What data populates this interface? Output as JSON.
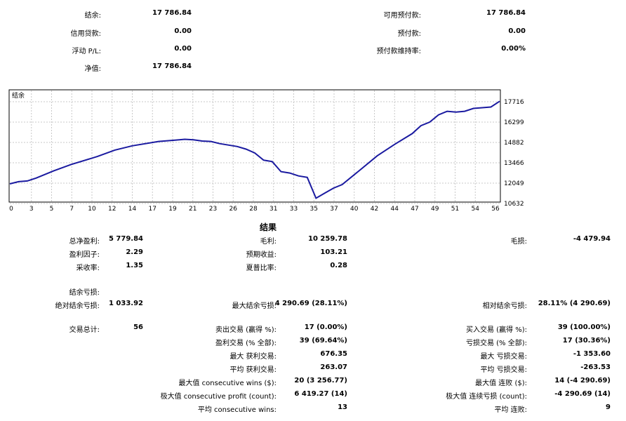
{
  "summary": {
    "balance_label": "结余:",
    "balance_value": "17 786.84",
    "credit_label": "信用贷款:",
    "credit_value": "0.00",
    "floating_label": "浮动 P/L:",
    "floating_value": "0.00",
    "equity_label": "净值:",
    "equity_value": "17 786.84",
    "free_margin_label": "可用预付款:",
    "free_margin_value": "17 786.84",
    "margin_label": "预付款:",
    "margin_value": "0.00",
    "margin_level_label": "预付款维持率:",
    "margin_level_value": "0.00%"
  },
  "chart_data": {
    "type": "line",
    "legend": "结余",
    "x_ticks": [
      "0",
      "3",
      "5",
      "7",
      "10",
      "12",
      "14",
      "17",
      "19",
      "21",
      "23",
      "26",
      "28",
      "31",
      "33",
      "35",
      "37",
      "40",
      "42",
      "44",
      "47",
      "49",
      "51",
      "54",
      "56"
    ],
    "y_ticks": [
      "17716",
      "16299",
      "14882",
      "13466",
      "12049",
      "10632"
    ],
    "ylim": [
      10632,
      17716
    ],
    "xlim": [
      0,
      56
    ],
    "grid": true,
    "line_color": "#1a1aa0",
    "x": [
      0,
      1,
      2,
      3,
      5,
      7,
      10,
      12,
      14,
      17,
      19,
      20,
      21,
      22,
      23,
      24,
      26,
      27,
      28,
      29,
      30,
      31,
      32,
      33,
      34,
      35,
      36,
      37,
      38,
      40,
      42,
      44,
      46,
      47,
      48,
      49,
      50,
      51,
      52,
      53,
      54,
      55,
      56
    ],
    "y": [
      12000,
      12150,
      12200,
      12400,
      12900,
      13350,
      13900,
      14350,
      14650,
      14950,
      15050,
      15100,
      15070,
      14980,
      14950,
      14800,
      14600,
      14420,
      14150,
      13650,
      13550,
      12850,
      12750,
      12550,
      12450,
      11000,
      11350,
      11700,
      11950,
      12950,
      13950,
      14750,
      15500,
      16050,
      16300,
      16800,
      17050,
      17000,
      17050,
      17250,
      17300,
      17350,
      17750
    ]
  },
  "results": {
    "title": "结果",
    "net_profit_label": "总净盈利:",
    "net_profit_value": "5 779.84",
    "gross_profit_label": "毛利:",
    "gross_profit_value": "10 259.78",
    "gross_loss_label": "毛损:",
    "gross_loss_value": "-4 479.94",
    "profit_factor_label": "盈利因子:",
    "profit_factor_value": "2.29",
    "expected_payoff_label": "预期收益:",
    "expected_payoff_value": "103.21",
    "recovery_label": "采收率:",
    "recovery_value": "1.35",
    "sharpe_label": "夏普比率:",
    "sharpe_value": "0.28",
    "drawdown_header": "结余亏损:",
    "abs_dd_label": "绝对结余亏损:",
    "abs_dd_value": "1 033.92",
    "max_dd_label": "最大结余亏损:",
    "max_dd_value": "4 290.69 (28.11%)",
    "rel_dd_label": "相对结余亏损:",
    "rel_dd_value": "28.11% (4 290.69)",
    "total_trades_label": "交易总计:",
    "total_trades_value": "56",
    "short_trades_label": "卖出交易 (赢得 %):",
    "short_trades_value": "17 (0.00%)",
    "long_trades_label": "买入交易 (赢得 %):",
    "long_trades_value": "39 (100.00%)",
    "profit_trades_label": "盈利交易 (% 全部):",
    "profit_trades_value": "39 (69.64%)",
    "loss_trades_label": "亏损交易 (% 全部):",
    "loss_trades_value": "17 (30.36%)",
    "largest_profit_label": "最大 获利交易:",
    "largest_profit_value": "676.35",
    "largest_loss_label": "最大 亏损交易:",
    "largest_loss_value": "-1 353.60",
    "avg_profit_label": "平均 获利交易:",
    "avg_profit_value": "263.07",
    "avg_loss_label": "平均 亏损交易:",
    "avg_loss_value": "-263.53",
    "max_cons_wins_label": "最大值 consecutive wins ($):",
    "max_cons_wins_value": "20 (3 256.77)",
    "max_cons_losses_label": "最大值 连败 ($):",
    "max_cons_losses_value": "14 (-4 290.69)",
    "max_cons_profit_label": "极大值 consecutive profit (count):",
    "max_cons_profit_value": "6 419.27 (14)",
    "max_cons_loss_label": "极大值 连续亏损 (count):",
    "max_cons_loss_value": "-4 290.69 (14)",
    "avg_cons_wins_label": "平均 consecutive wins:",
    "avg_cons_wins_value": "13",
    "avg_cons_losses_label": "平均 连败:",
    "avg_cons_losses_value": "9"
  }
}
